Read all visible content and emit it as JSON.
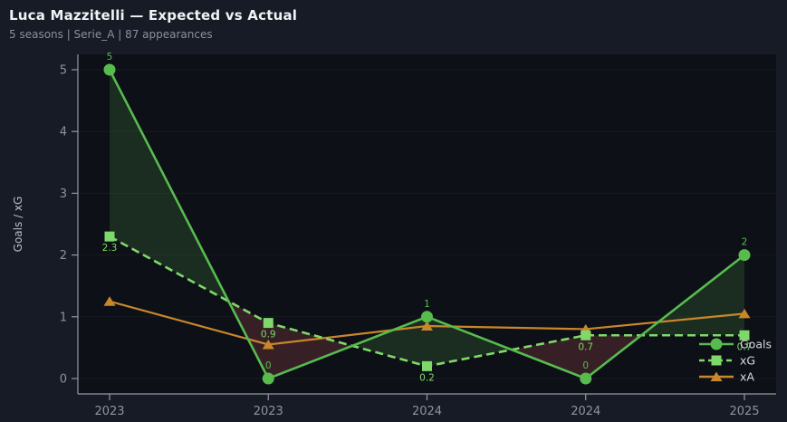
{
  "header": {
    "title": "Luca Mazzitelli — Expected vs Actual",
    "subtitle": "5 seasons | Serie_A | 87 appearances"
  },
  "chart_data": {
    "type": "line",
    "title": "Luca Mazzitelli — Expected vs Actual",
    "subtitle": "5 seasons | Serie_A | 87 appearances",
    "categories": [
      "2023",
      "2023",
      "2024",
      "2024",
      "2025"
    ],
    "xlabel": "",
    "ylabel": "Goals / xG",
    "ylim": [
      0,
      5
    ],
    "yticks": [
      0,
      1,
      2,
      3,
      4,
      5
    ],
    "grid": true,
    "legend_position": "lower right",
    "series": [
      {
        "name": "Goals",
        "style": "solid",
        "marker": "circle",
        "color": "#57bb4e",
        "values": [
          5,
          0,
          1,
          0,
          2
        ],
        "labels": [
          "5",
          "0",
          "1",
          "0",
          "2"
        ],
        "label_side": "above"
      },
      {
        "name": "xG",
        "style": "dashed",
        "marker": "square",
        "color": "#7fd96a",
        "values": [
          2.3,
          0.9,
          0.2,
          0.7,
          0.7
        ],
        "labels": [
          "2.3",
          "0.9",
          "0.2",
          "0.7",
          "0.7"
        ],
        "label_side": "below"
      },
      {
        "name": "xA",
        "style": "solid",
        "marker": "triangle",
        "color": "#c8872b",
        "values": [
          1.25,
          0.55,
          0.85,
          0.8,
          1.05
        ],
        "labels": [],
        "label_side": "none"
      }
    ],
    "diff_fill": {
      "between": [
        "Goals",
        "xG"
      ],
      "positive_color": "rgba(110,205,95,0.15)",
      "negative_color": "rgba(205,85,95,0.22)"
    }
  },
  "colors": {
    "background": "#171b25",
    "plot_bg": "#0d1016",
    "grid": "rgba(255,255,255,0.045)",
    "spine": "#9298a2",
    "tick_label": "#8d93a0",
    "axis_label": "#b9bec7",
    "legend_text": "#d6d9dd",
    "title": "#f0f2f5",
    "subtitle": "#8b919c"
  }
}
